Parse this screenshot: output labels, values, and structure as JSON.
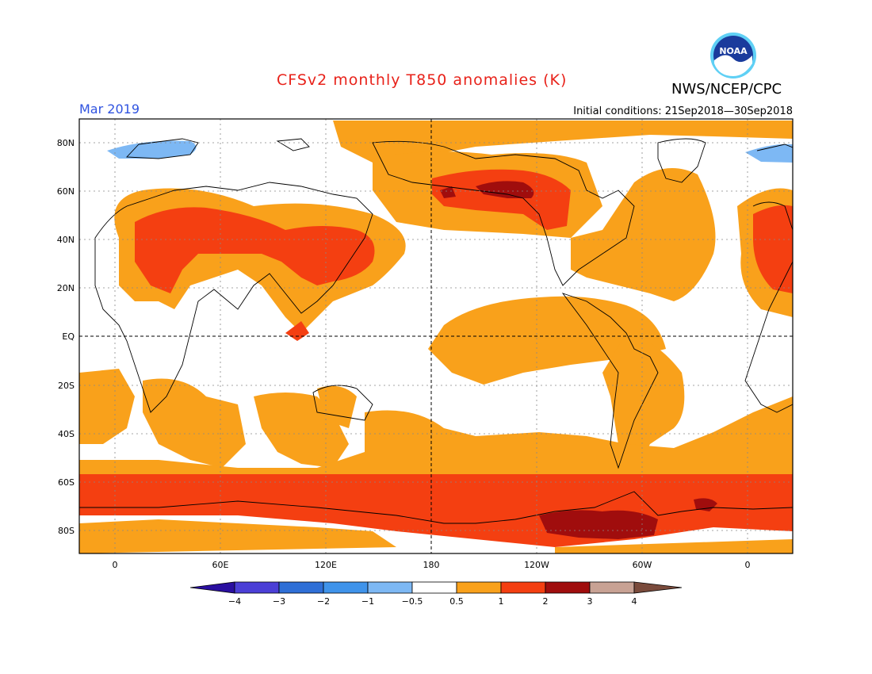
{
  "header": {
    "title": "CFSv2 monthly T850 anomalies (K)",
    "org": "NWS/NCEP/CPC",
    "logo_text": "NOAA",
    "valid_period": "Mar 2019",
    "initial_conditions": "Initial conditions: 21Sep2018—30Sep2018"
  },
  "axes": {
    "lat_labels": [
      "80N",
      "60N",
      "40N",
      "20N",
      "EQ",
      "20S",
      "40S",
      "60S",
      "80S"
    ],
    "lon_labels": [
      "0",
      "60E",
      "120E",
      "180",
      "120W",
      "60W",
      "0"
    ]
  },
  "colorbar": {
    "labels": [
      "−4",
      "−3",
      "−2",
      "−1",
      "−0.5",
      "0.5",
      "1",
      "2",
      "3",
      "4"
    ],
    "colors": [
      "#2a0fa0",
      "#4b3fd6",
      "#2f6fd6",
      "#3f93ea",
      "#7db8f4",
      "#ffffff",
      "#f9a11b",
      "#f43f11",
      "#a00d0d",
      "#c8a294",
      "#7a4b3c"
    ]
  },
  "colors": {
    "warm_low": "#f9a11b",
    "warm_mid": "#f43f11",
    "warm_high": "#a00d0d",
    "cool": "#7db8f4",
    "title": "#e8221a",
    "period": "#2f53e0"
  }
}
